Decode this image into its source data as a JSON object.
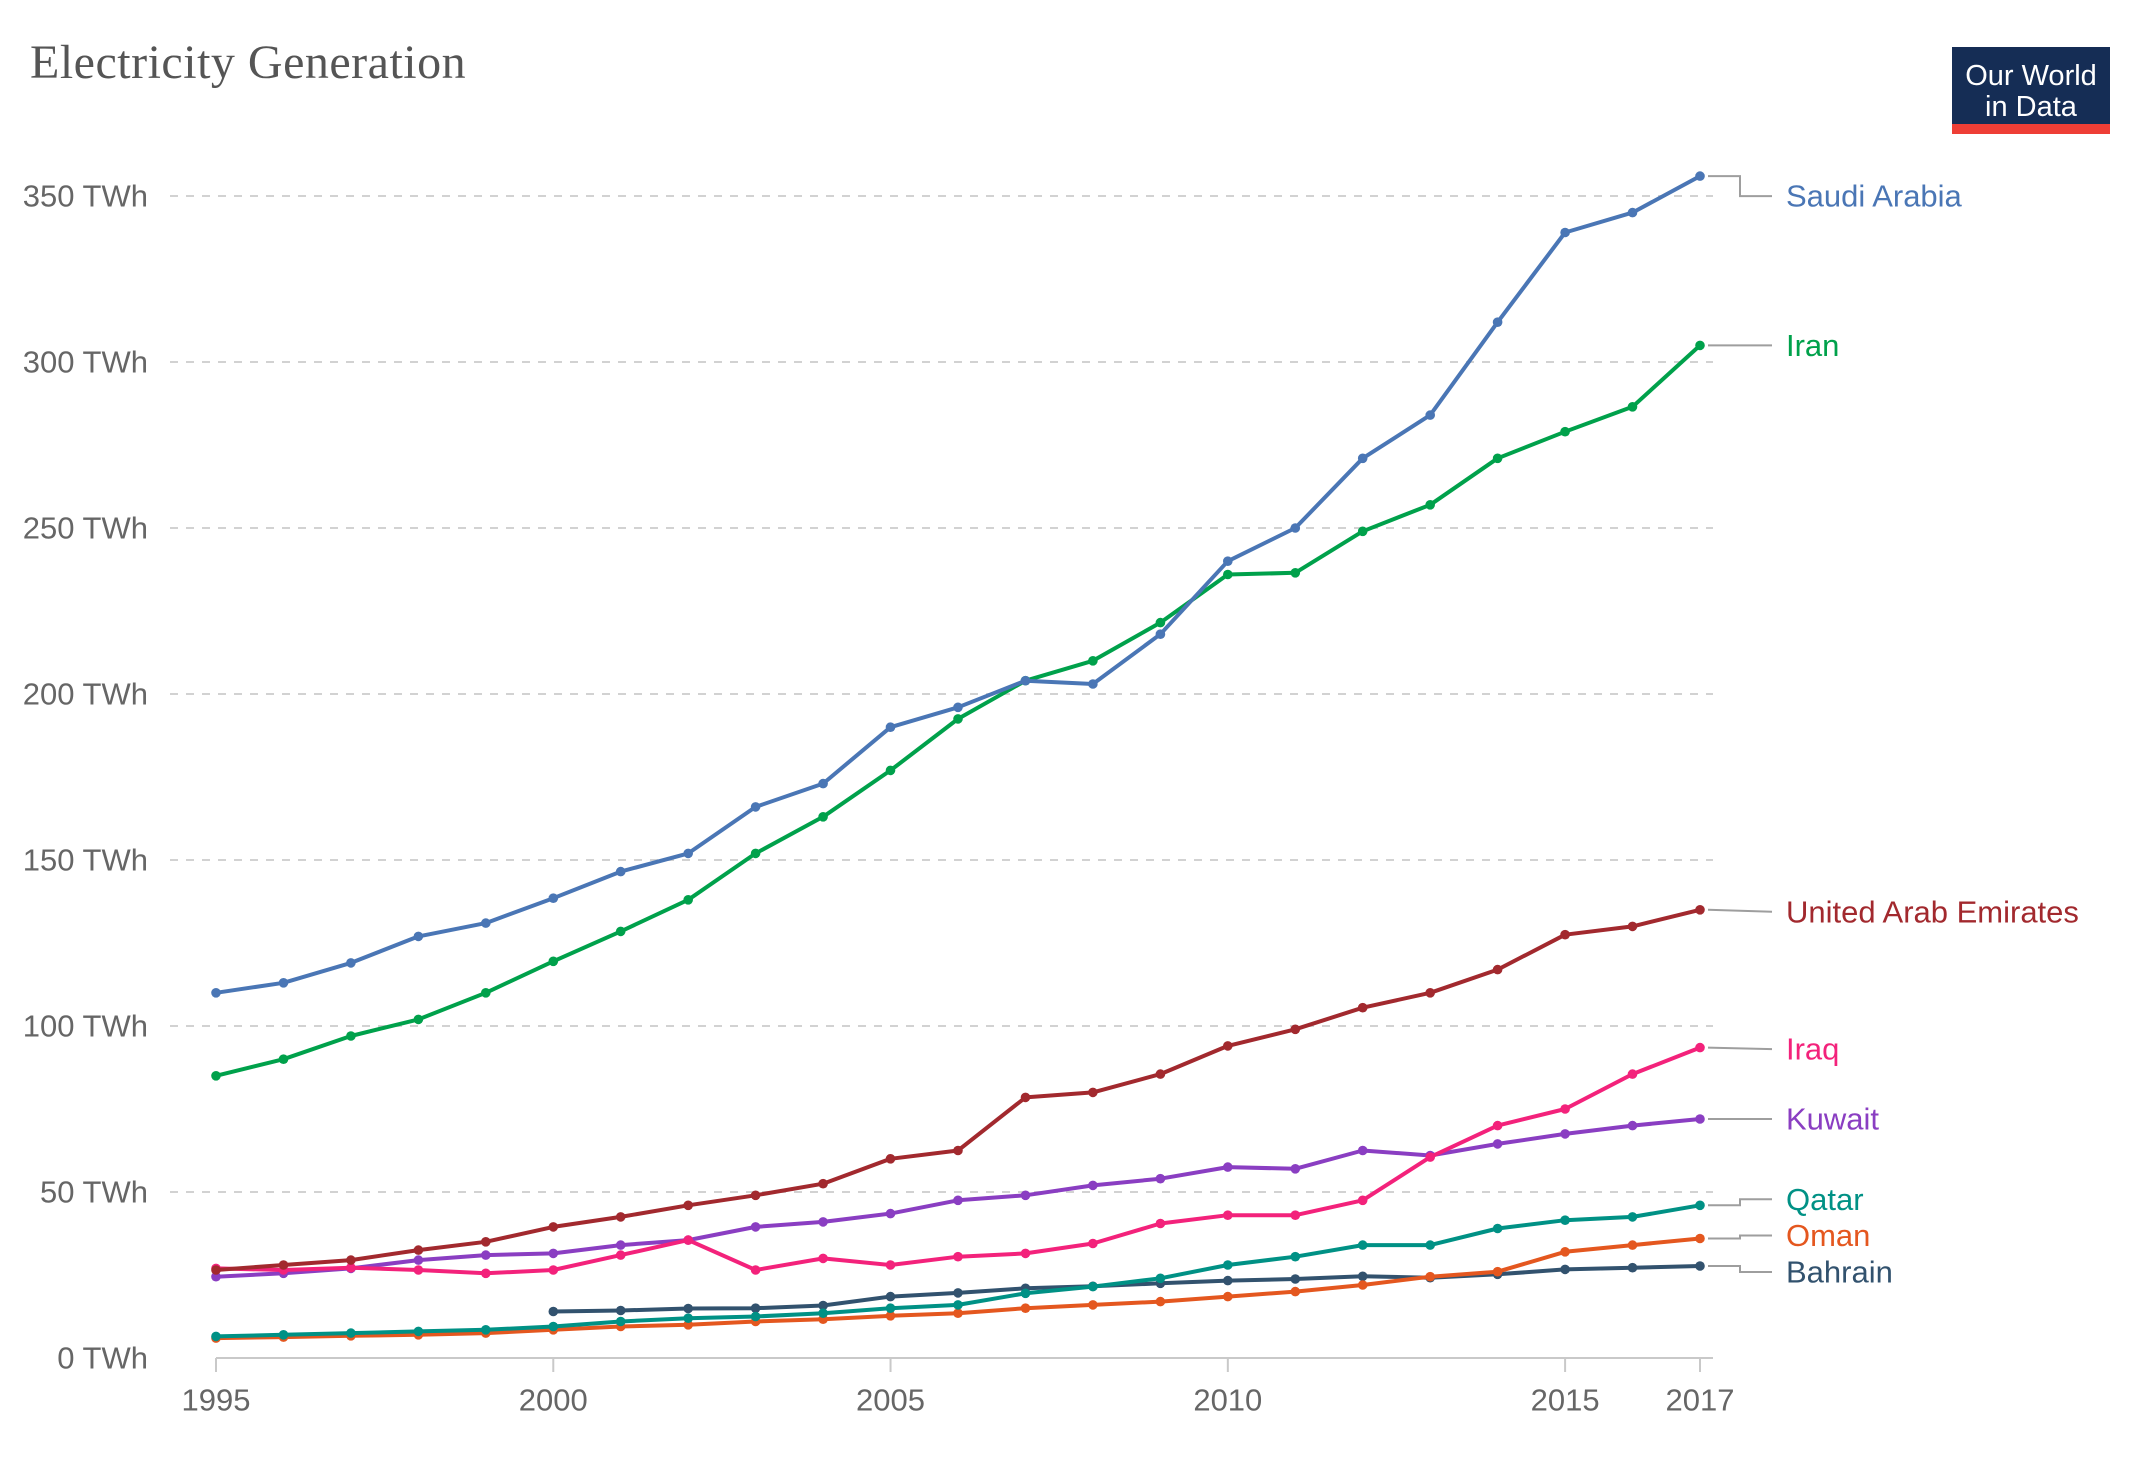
{
  "header": {
    "title": "Electricity Generation",
    "logo": {
      "line1": "Our World",
      "line2": "in Data"
    }
  },
  "chart_data": {
    "type": "line",
    "title": "Electricity Generation",
    "unit": "TWh",
    "grid": "horizontal-dashed",
    "legend_position": "right-end-labels",
    "xlim": [
      1995,
      2017
    ],
    "ylim": [
      0,
      350
    ],
    "x": [
      1995,
      1996,
      1997,
      1998,
      1999,
      2000,
      2001,
      2002,
      2003,
      2004,
      2005,
      2006,
      2007,
      2008,
      2009,
      2010,
      2011,
      2012,
      2013,
      2014,
      2015,
      2016,
      2017
    ],
    "x_tick_values": [
      1995,
      2000,
      2005,
      2010,
      2015,
      2017
    ],
    "x_tick_labels": [
      "1995",
      "2000",
      "2005",
      "2010",
      "2015",
      "2017"
    ],
    "y_tick_values": [
      0,
      50,
      100,
      150,
      200,
      250,
      300,
      350
    ],
    "y_tick_labels": [
      "0 TWh",
      "50 TWh",
      "100 TWh",
      "150 TWh",
      "200 TWh",
      "250 TWh",
      "300 TWh",
      "350 TWh"
    ],
    "series": [
      {
        "name": "Saudi Arabia",
        "color": "#4a76b5",
        "values": [
          110,
          113,
          119,
          127,
          131,
          138.5,
          146.5,
          152,
          166,
          173,
          190,
          196,
          204,
          203,
          218,
          240,
          250,
          271,
          284,
          312,
          339,
          345,
          356
        ]
      },
      {
        "name": "Iran",
        "color": "#00a14b",
        "values": [
          85,
          90,
          97,
          102,
          110,
          119.5,
          128.5,
          138,
          152,
          163,
          177,
          192.5,
          204,
          210,
          221.5,
          236,
          236.5,
          249,
          257,
          271,
          279,
          286.5,
          305
        ]
      },
      {
        "name": "United Arab Emirates",
        "color": "#a2292e",
        "values": [
          26.5,
          28,
          29.5,
          32.5,
          35,
          39.5,
          42.5,
          46,
          49,
          52.5,
          60,
          62.5,
          78.5,
          80,
          85.5,
          94,
          99,
          105.5,
          110,
          117,
          127.5,
          130,
          135
        ]
      },
      {
        "name": "Iraq",
        "color": "#f3227b",
        "values": [
          27,
          26.5,
          27.2,
          26.5,
          25.5,
          26.5,
          31,
          35.5,
          26.5,
          30,
          28,
          30.5,
          31.5,
          34.5,
          40.5,
          43,
          43,
          47.5,
          60.5,
          70,
          75,
          85.5,
          93.5
        ]
      },
      {
        "name": "Kuwait",
        "color": "#8a3ec2",
        "values": [
          24.5,
          25.5,
          27,
          29.5,
          31,
          31.5,
          34,
          35.5,
          39.5,
          41,
          43.5,
          47.5,
          49,
          52,
          54,
          57.5,
          57,
          62.5,
          61,
          64.5,
          67.5,
          70,
          72
        ]
      },
      {
        "name": "Qatar",
        "color": "#009185",
        "values": [
          6.5,
          7,
          7.5,
          8,
          8.5,
          9.5,
          11,
          12,
          12.5,
          13.5,
          15,
          16,
          19.5,
          21.5,
          24,
          28,
          30.5,
          34,
          34,
          39,
          41.5,
          42.5,
          46
        ]
      },
      {
        "name": "Oman",
        "color": "#e4571f",
        "values": [
          6,
          6.3,
          6.7,
          7,
          7.5,
          8.5,
          9.5,
          10,
          11,
          11.7,
          12.7,
          13.5,
          15,
          16,
          17,
          18.5,
          20,
          22,
          24.5,
          26,
          32,
          34,
          36
        ]
      },
      {
        "name": "Bahrain",
        "color": "#32526e",
        "values": [
          null,
          null,
          null,
          null,
          null,
          14,
          14.3,
          14.9,
          15,
          15.8,
          18.5,
          19.6,
          21,
          21.6,
          22.5,
          23.3,
          23.8,
          24.6,
          24.2,
          25.2,
          26.7,
          27.2,
          27.7
        ]
      }
    ]
  },
  "colors": {
    "title": "#555555",
    "axis_text": "#666666",
    "gridline": "#d2d2d2",
    "axis_line": "#c9c9c9",
    "connector": "#9e9e9e",
    "background": "#ffffff",
    "logo_bg": "#152d55",
    "logo_strip": "#ee3e36",
    "logo_text": "#ffffff"
  }
}
